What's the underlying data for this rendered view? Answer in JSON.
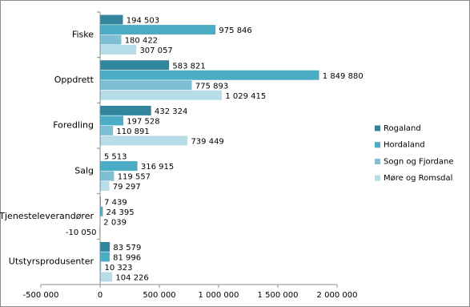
{
  "chart_data": {
    "type": "hbar",
    "categories": [
      "Fiske",
      "Oppdrett",
      "Foredling",
      "Salg",
      "Tjenesteleverandører",
      "Utstyrsprodusenter"
    ],
    "series": [
      {
        "name": "Rogaland",
        "color": "#31859c",
        "values": [
          194503,
          583821,
          432324,
          5513,
          7439,
          83579
        ],
        "value_labels": [
          "194 503",
          "583 821",
          "432 324",
          "5 513",
          "7 439",
          "83 579"
        ]
      },
      {
        "name": "Hordaland",
        "color": "#4bacc6",
        "values": [
          975846,
          1849880,
          197528,
          316915,
          24395,
          81996
        ],
        "value_labels": [
          "975 846",
          "1 849 880",
          "197 528",
          "316 915",
          "24 395",
          "81 996"
        ]
      },
      {
        "name": "Sogn og Fjordane",
        "color": "#7fbfd4",
        "values": [
          180422,
          775893,
          110891,
          119557,
          2039,
          10323
        ],
        "value_labels": [
          "180 422",
          "775 893",
          "110 891",
          "119 557",
          "2 039",
          "10 323"
        ]
      },
      {
        "name": "Møre og Romsdal",
        "color": "#b7dde8",
        "values": [
          307057,
          1029415,
          739449,
          79297,
          -10050,
          104226
        ],
        "value_labels": [
          "307 057",
          "1 029 415",
          "739 449",
          "79 297",
          "-10 050",
          "104 226"
        ]
      }
    ],
    "xlim": [
      -500000,
      2000000
    ],
    "xticks": [
      {
        "value": -500000,
        "label": "-500 000"
      },
      0,
      {
        "value": 500000,
        "label": "500 000"
      },
      {
        "value": 1000000,
        "label": "1 000 000"
      },
      {
        "value": 1500000,
        "label": "1 500 000"
      },
      {
        "value": 2000000,
        "label": "2 000 000"
      }
    ],
    "legend": "right"
  }
}
